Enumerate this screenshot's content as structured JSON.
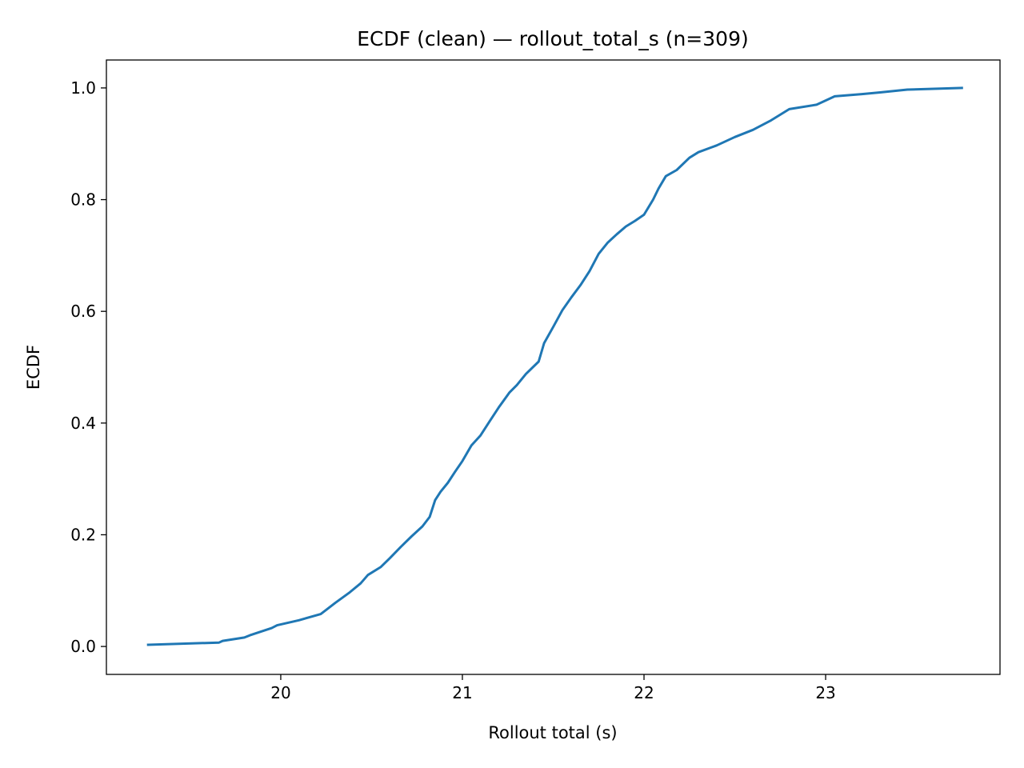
{
  "chart_data": {
    "type": "line",
    "title": "ECDF (clean) — rollout_total_s (n=309)",
    "xlabel": "Rollout total (s)",
    "ylabel": "ECDF",
    "xlim": [
      19.04,
      23.96
    ],
    "ylim": [
      -0.05,
      1.05
    ],
    "xticks": [
      20,
      21,
      22,
      23
    ],
    "xtick_labels": [
      "20",
      "21",
      "22",
      "23"
    ],
    "yticks": [
      0.0,
      0.2,
      0.4,
      0.6,
      0.8,
      1.0
    ],
    "ytick_labels": [
      "0.0",
      "0.2",
      "0.4",
      "0.6",
      "0.8",
      "1.0"
    ],
    "grid": false,
    "legend": "none",
    "series": [
      {
        "color": "#1f77b4",
        "x": [
          19.27,
          19.66,
          19.68,
          19.8,
          19.83,
          19.95,
          19.98,
          20.1,
          20.22,
          20.3,
          20.38,
          20.44,
          20.48,
          20.55,
          20.6,
          20.66,
          20.72,
          20.78,
          20.82,
          20.85,
          20.88,
          20.92,
          20.96,
          21.0,
          21.05,
          21.1,
          21.15,
          21.2,
          21.26,
          21.3,
          21.35,
          21.42,
          21.45,
          21.5,
          21.55,
          21.6,
          21.65,
          21.7,
          21.75,
          21.8,
          21.85,
          21.9,
          21.95,
          22.0,
          22.05,
          22.08,
          22.12,
          22.18,
          22.25,
          22.3,
          22.4,
          22.5,
          22.6,
          22.7,
          22.8,
          22.95,
          23.05,
          23.2,
          23.3,
          23.45,
          23.75
        ],
        "y": [
          0.003,
          0.007,
          0.01,
          0.016,
          0.02,
          0.033,
          0.038,
          0.047,
          0.058,
          0.078,
          0.097,
          0.113,
          0.128,
          0.142,
          0.158,
          0.178,
          0.197,
          0.215,
          0.232,
          0.262,
          0.277,
          0.293,
          0.313,
          0.332,
          0.36,
          0.378,
          0.403,
          0.428,
          0.455,
          0.468,
          0.488,
          0.51,
          0.543,
          0.572,
          0.602,
          0.625,
          0.647,
          0.672,
          0.703,
          0.723,
          0.738,
          0.752,
          0.762,
          0.773,
          0.8,
          0.82,
          0.842,
          0.853,
          0.875,
          0.885,
          0.897,
          0.912,
          0.925,
          0.942,
          0.962,
          0.97,
          0.985,
          0.989,
          0.992,
          0.997,
          1.0
        ]
      }
    ]
  }
}
